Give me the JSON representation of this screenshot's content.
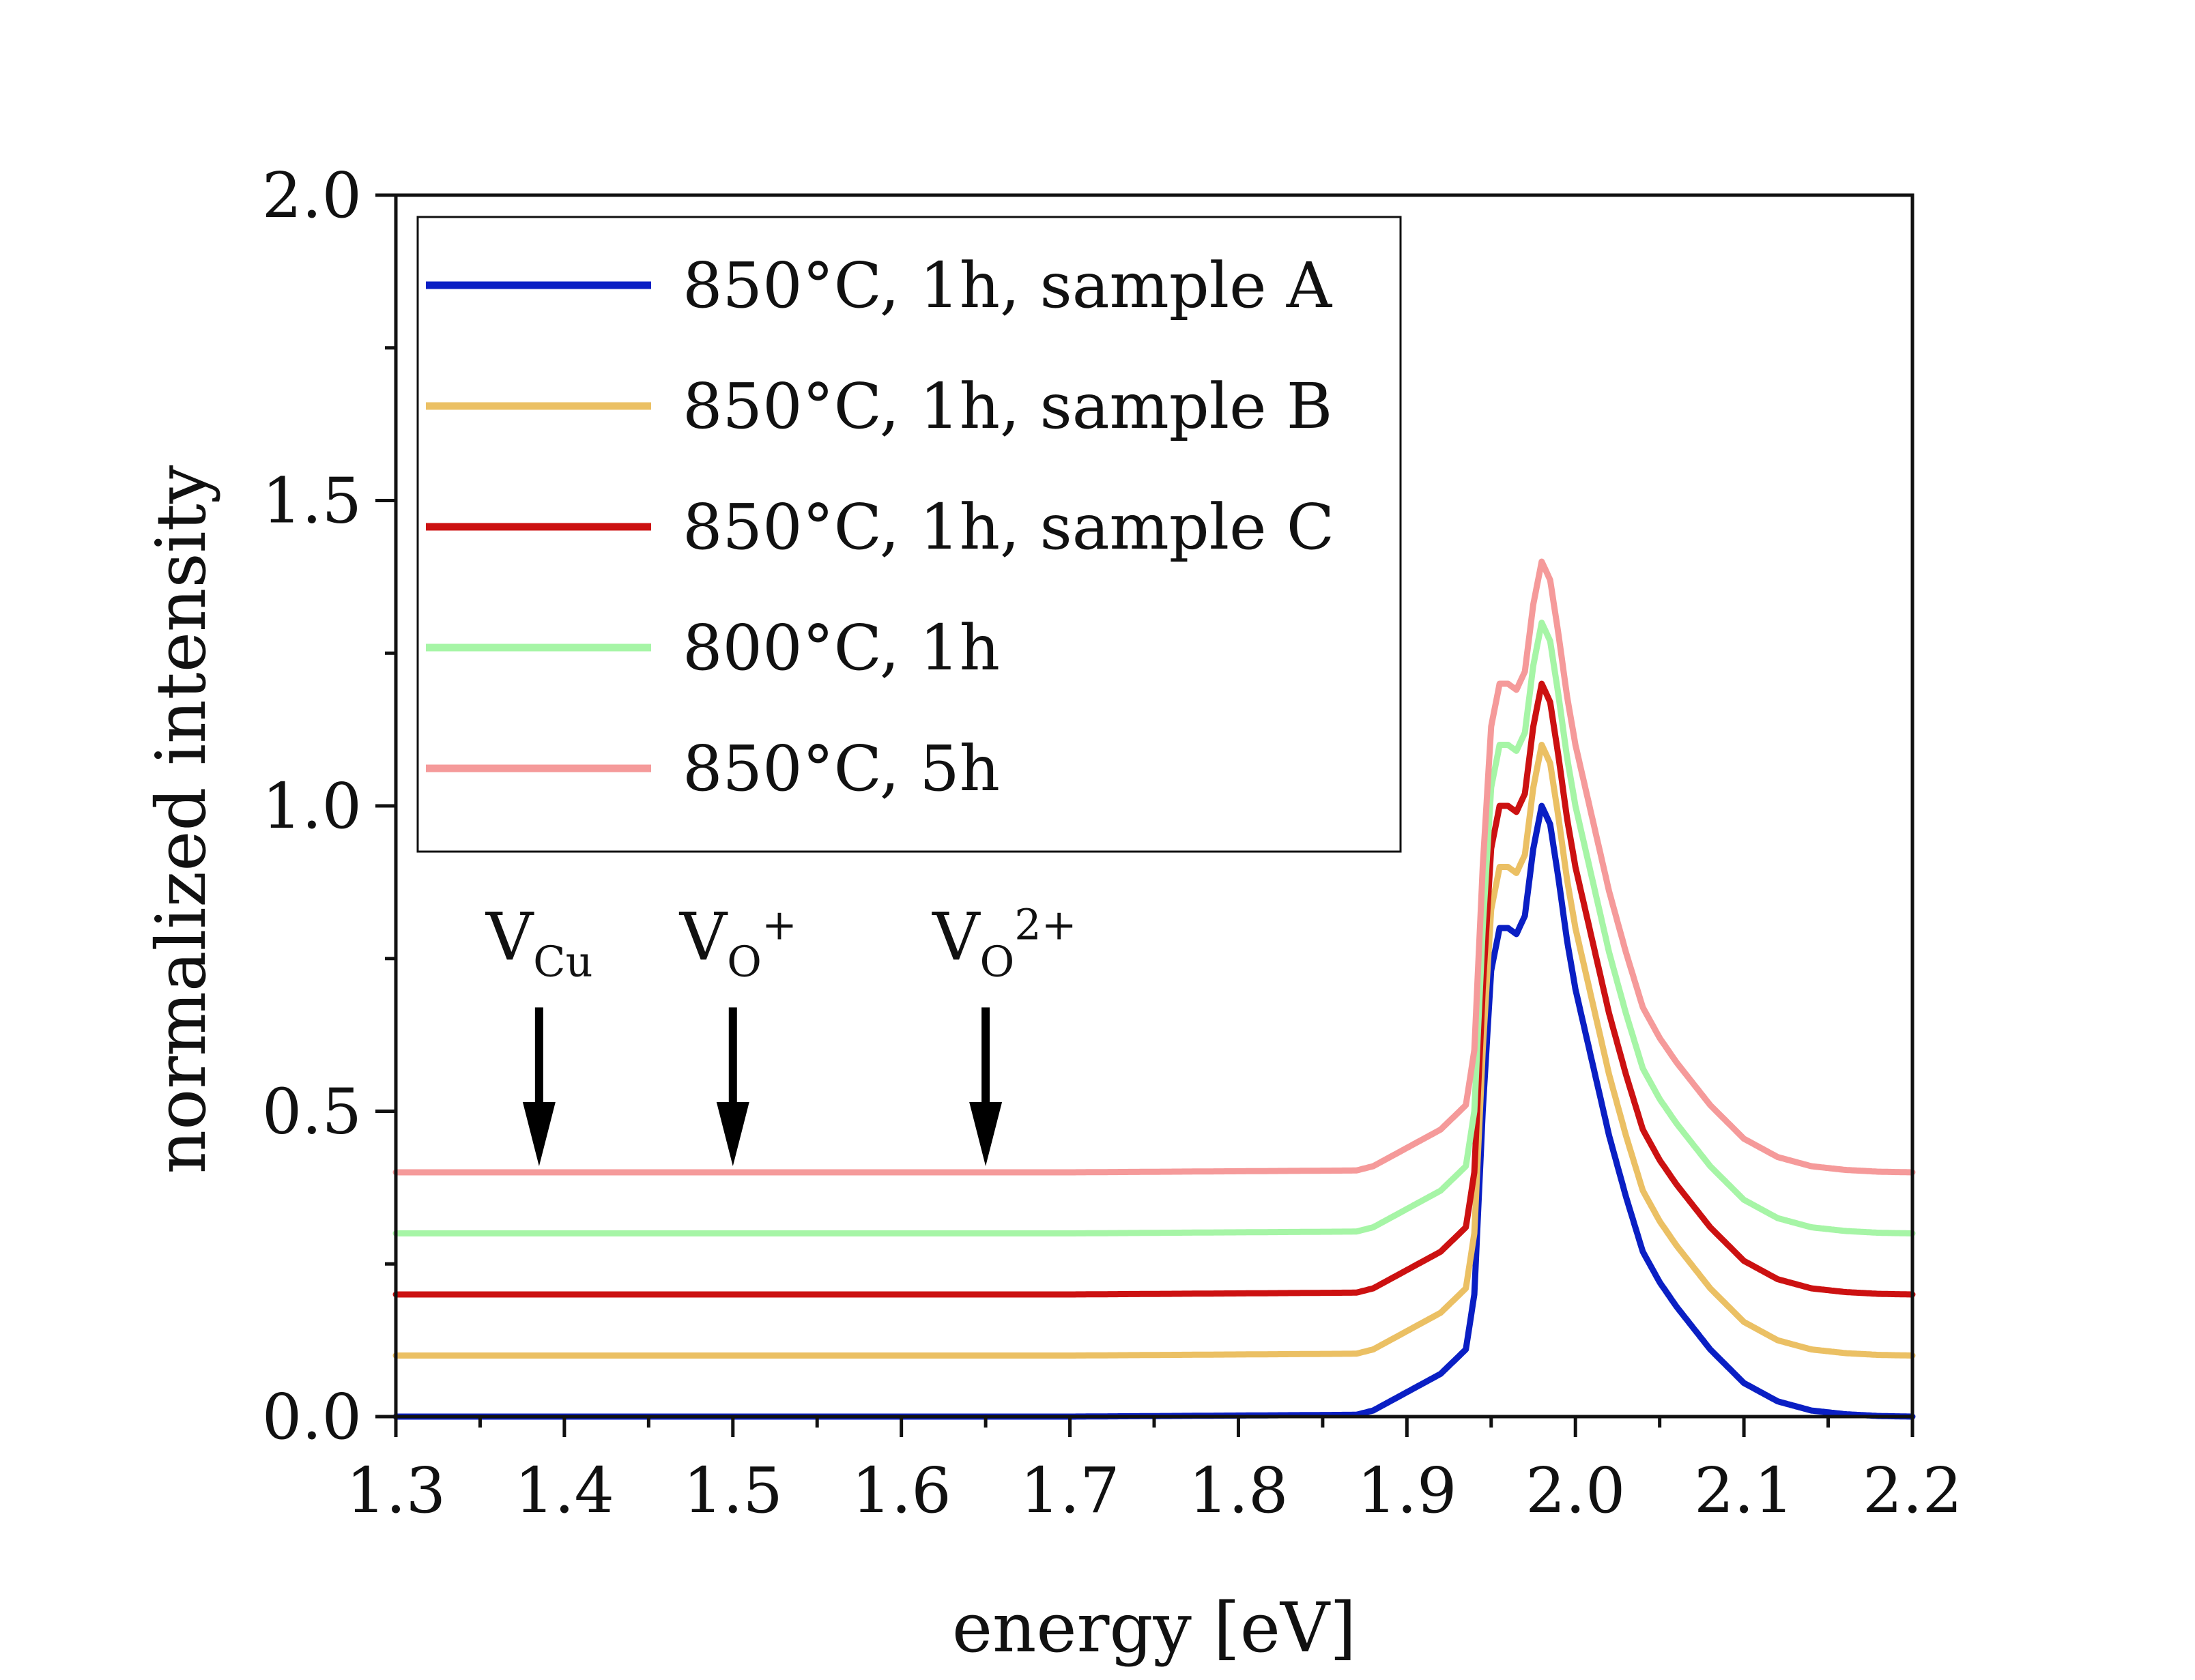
{
  "chart_data": {
    "type": "line",
    "title": "",
    "xlabel": "energy [eV]",
    "ylabel": "normalized intensity",
    "xlim": [
      1.3,
      2.2
    ],
    "ylim": [
      0.0,
      2.0
    ],
    "xticks": [
      1.3,
      1.4,
      1.5,
      1.6,
      1.7,
      1.8,
      1.9,
      2.0,
      2.1,
      2.2
    ],
    "xtick_labels": [
      "1.3",
      "1.4",
      "1.5",
      "1.6",
      "1.7",
      "1.8",
      "1.9",
      "2.0",
      "2.1",
      "2.2"
    ],
    "yticks": [
      0.0,
      0.5,
      1.0,
      1.5,
      2.0
    ],
    "ytick_labels": [
      "0.0",
      "0.5",
      "1.0",
      "1.5",
      "2.0"
    ],
    "grid": false,
    "legend_position": "top-left",
    "profile_x": [
      1.3,
      1.5,
      1.7,
      1.87,
      1.88,
      1.9,
      1.92,
      1.935,
      1.94,
      1.945,
      1.95,
      1.955,
      1.96,
      1.965,
      1.97,
      1.975,
      1.98,
      1.985,
      1.99,
      1.995,
      2.0,
      2.01,
      2.02,
      2.03,
      2.04,
      2.05,
      2.06,
      2.08,
      2.1,
      2.12,
      2.14,
      2.16,
      2.18,
      2.2
    ],
    "profile_y": [
      0.0,
      0.0,
      0.0,
      0.003,
      0.01,
      0.04,
      0.07,
      0.11,
      0.2,
      0.5,
      0.73,
      0.8,
      0.8,
      0.79,
      0.82,
      0.93,
      1.0,
      0.97,
      0.88,
      0.78,
      0.7,
      0.58,
      0.46,
      0.36,
      0.27,
      0.22,
      0.18,
      0.11,
      0.055,
      0.025,
      0.01,
      0.004,
      0.001,
      0.0
    ],
    "series": [
      {
        "name": "850°C, 1h, sample A",
        "color": "#0a1fc4",
        "offset": 0.0,
        "values": [
          0.0,
          0.0,
          0.0,
          0.0,
          0.0,
          0.0,
          0.0,
          0.003,
          0.04,
          0.11,
          0.8,
          1.0,
          0.7,
          0.27,
          0.055,
          0.004,
          0.0
        ]
      },
      {
        "name": "850°C, 1h, sample B",
        "color": "#ebc064",
        "offset": 0.1,
        "values": [
          0.1,
          0.1,
          0.1,
          0.1,
          0.1,
          0.1,
          0.1,
          0.103,
          0.14,
          0.21,
          0.9,
          1.1,
          0.8,
          0.37,
          0.155,
          0.104,
          0.1
        ]
      },
      {
        "name": "850°C, 1h, sample C",
        "color": "#cc1111",
        "offset": 0.2,
        "values": [
          0.2,
          0.2,
          0.2,
          0.2,
          0.2,
          0.2,
          0.2,
          0.203,
          0.24,
          0.31,
          1.0,
          1.2,
          0.9,
          0.47,
          0.255,
          0.204,
          0.2
        ]
      },
      {
        "name": "800°C, 1h",
        "color": "#a6f5a6",
        "offset": 0.3,
        "values": [
          0.3,
          0.3,
          0.3,
          0.3,
          0.3,
          0.3,
          0.3,
          0.303,
          0.34,
          0.41,
          1.1,
          1.3,
          1.0,
          0.57,
          0.355,
          0.304,
          0.3
        ]
      },
      {
        "name": "850°C, 5h",
        "color": "#f59a9a",
        "offset": 0.4,
        "values": [
          0.4,
          0.4,
          0.4,
          0.4,
          0.4,
          0.4,
          0.4,
          0.403,
          0.44,
          0.51,
          1.2,
          1.4,
          1.1,
          0.67,
          0.455,
          0.404,
          0.4
        ]
      }
    ],
    "x": [
      1.3,
      1.4,
      1.5,
      1.6,
      1.7,
      1.8,
      1.85,
      1.87,
      1.9,
      1.935,
      1.96,
      1.98,
      2.0,
      2.04,
      2.1,
      2.16,
      2.2
    ],
    "annotations": [
      {
        "label": "V",
        "subscript": "Cu",
        "superscript": "",
        "x": 1.385,
        "arrow_from_y": 0.67,
        "arrow_to_y": 0.41
      },
      {
        "label": "V",
        "subscript": "O",
        "superscript": "+",
        "x": 1.5,
        "arrow_from_y": 0.67,
        "arrow_to_y": 0.41
      },
      {
        "label": "V",
        "subscript": "O",
        "superscript": "2+",
        "x": 1.65,
        "arrow_from_y": 0.67,
        "arrow_to_y": 0.41
      }
    ]
  }
}
